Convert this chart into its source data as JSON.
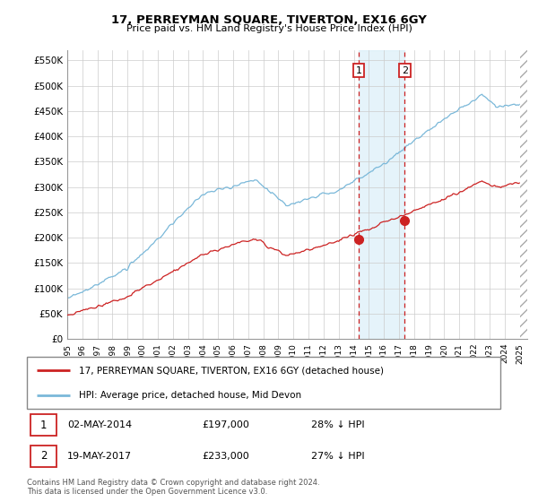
{
  "title": "17, PERREYMAN SQUARE, TIVERTON, EX16 6GY",
  "subtitle": "Price paid vs. HM Land Registry's House Price Index (HPI)",
  "ylim": [
    0,
    570000
  ],
  "xlim_start": 1995.0,
  "xlim_end": 2025.5,
  "legend_line1": "17, PERREYMAN SQUARE, TIVERTON, EX16 6GY (detached house)",
  "legend_line2": "HPI: Average price, detached house, Mid Devon",
  "transaction1_date": "02-MAY-2014",
  "transaction1_price": "£197,000",
  "transaction1_note": "28% ↓ HPI",
  "transaction2_date": "19-MAY-2017",
  "transaction2_price": "£233,000",
  "transaction2_note": "27% ↓ HPI",
  "copyright": "Contains HM Land Registry data © Crown copyright and database right 2024.\nThis data is licensed under the Open Government Licence v3.0.",
  "hpi_color": "#7ab8d9",
  "price_color": "#cc2222",
  "shade_color": "#daeef8",
  "vline_color": "#cc2222",
  "transaction1_x": 2014.333,
  "transaction2_x": 2017.375,
  "transaction1_y": 197000,
  "transaction2_y": 233000,
  "background_color": "#ffffff",
  "grid_color": "#cccccc",
  "yticks": [
    0,
    50000,
    100000,
    150000,
    200000,
    250000,
    300000,
    350000,
    400000,
    450000,
    500000,
    550000
  ],
  "ylabels": [
    "£0",
    "£50K",
    "£100K",
    "£150K",
    "£200K",
    "£250K",
    "£300K",
    "£350K",
    "£400K",
    "£450K",
    "£500K",
    "£550K"
  ]
}
